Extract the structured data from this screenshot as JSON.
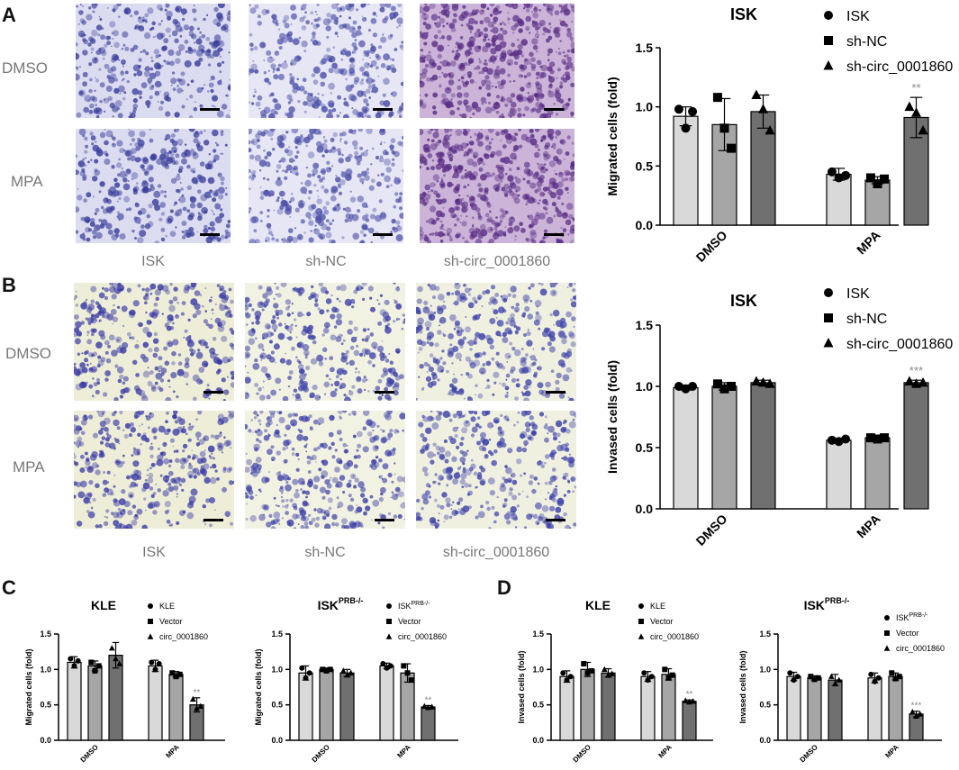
{
  "panels": {
    "a": "A",
    "b": "B",
    "c": "C",
    "d": "D"
  },
  "micrographs": {
    "rows": [
      "DMSO",
      "MPA"
    ],
    "cols": [
      "ISK",
      "sh-NC",
      "sh-circ_0001860"
    ],
    "tints": {
      "A": {
        "base": [
          "#dcdcf0",
          "#e6e6f4",
          "#cbb4d8"
        ],
        "stain": [
          "#3b3f9c",
          "#4a4ea8",
          "#5a2d86"
        ]
      },
      "B": {
        "base": [
          "#eeeed8",
          "#f2f2e2",
          "#f0f0e0"
        ],
        "stain": [
          "#3a3aa6",
          "#3b3fa8",
          "#3d42aa"
        ]
      }
    }
  },
  "colors": {
    "bar1": "#d9d9d9",
    "bar2": "#a6a6a6",
    "bar3": "#707070",
    "sig": "#888888"
  },
  "chart_data": [
    {
      "id": "A",
      "type": "bar",
      "title": "ISK",
      "ylabel": "Migrated cells (fold)",
      "categories": [
        "DMSO",
        "MPA"
      ],
      "ylim": [
        0,
        1.5
      ],
      "yticks": [
        "0.0",
        "0.5",
        "1.0",
        "1.5"
      ],
      "series": [
        {
          "name": "ISK",
          "marker": "circle",
          "values": [
            0.92,
            0.43
          ],
          "err": [
            0.08,
            0.05
          ],
          "points": [
            [
              0.98,
              0.82,
              0.96
            ],
            [
              0.45,
              0.4,
              0.42
            ]
          ]
        },
        {
          "name": "sh-NC",
          "marker": "square",
          "values": [
            0.85,
            0.38
          ],
          "err": [
            0.22,
            0.03
          ],
          "points": [
            [
              1.08,
              0.82,
              0.65
            ],
            [
              0.4,
              0.35,
              0.39
            ]
          ]
        },
        {
          "name": "sh-circ_0001860",
          "marker": "triangle",
          "values": [
            0.96,
            0.91
          ],
          "err": [
            0.14,
            0.17
          ],
          "points": [
            [
              1.1,
              0.98,
              0.8
            ],
            [
              1.0,
              0.95,
              0.8
            ]
          ]
        }
      ],
      "annotations": [
        {
          "category": "MPA",
          "series": 2,
          "text": "**"
        }
      ]
    },
    {
      "id": "B",
      "type": "bar",
      "title": "ISK",
      "ylabel": "Invased cells (fold)",
      "categories": [
        "DMSO",
        "MPA"
      ],
      "ylim": [
        0,
        1.5
      ],
      "yticks": [
        "0.0",
        "0.5",
        "1.0",
        "1.5"
      ],
      "series": [
        {
          "name": "ISK",
          "marker": "circle",
          "values": [
            0.99,
            0.56
          ],
          "err": [
            0.02,
            0.01
          ],
          "points": [
            [
              1.0,
              0.98,
              1.0
            ],
            [
              0.56,
              0.55,
              0.57
            ]
          ]
        },
        {
          "name": "sh-NC",
          "marker": "square",
          "values": [
            1.0,
            0.58
          ],
          "err": [
            0.03,
            0.01
          ],
          "points": [
            [
              1.02,
              0.98,
              1.0
            ],
            [
              0.58,
              0.57,
              0.58
            ]
          ]
        },
        {
          "name": "sh-circ_0001860",
          "marker": "triangle",
          "values": [
            1.03,
            1.03
          ],
          "err": [
            0.02,
            0.02
          ],
          "points": [
            [
              1.04,
              1.03,
              1.02
            ],
            [
              1.04,
              1.02,
              1.03
            ]
          ]
        }
      ],
      "annotations": [
        {
          "category": "MPA",
          "series": 2,
          "text": "***"
        }
      ]
    },
    {
      "id": "C1",
      "type": "bar",
      "title": "KLE",
      "ylabel": "Migrated cells (fold)",
      "categories": [
        "DMSO",
        "MPA"
      ],
      "ylim": [
        0,
        1.5
      ],
      "yticks": [
        "0.0",
        "0.5",
        "1.0",
        "1.5"
      ],
      "series": [
        {
          "name": "KLE",
          "marker": "circle",
          "values": [
            1.1,
            1.05
          ],
          "err": [
            0.08,
            0.08
          ],
          "points": [
            [
              1.15,
              1.05,
              1.12
            ],
            [
              1.1,
              1.0,
              1.08
            ]
          ]
        },
        {
          "name": "Vector",
          "marker": "square",
          "values": [
            1.05,
            0.93
          ],
          "err": [
            0.07,
            0.04
          ],
          "points": [
            [
              1.1,
              0.98,
              1.05
            ],
            [
              0.95,
              0.9,
              0.93
            ]
          ]
        },
        {
          "name": "circ_0001860",
          "marker": "triangle",
          "values": [
            1.2,
            0.5
          ],
          "err": [
            0.18,
            0.1
          ],
          "points": [
            [
              1.3,
              1.15,
              1.08
            ],
            [
              0.58,
              0.45,
              0.48
            ]
          ]
        }
      ],
      "annotations": [
        {
          "category": "MPA",
          "series": 2,
          "text": "**"
        }
      ]
    },
    {
      "id": "C2",
      "type": "bar",
      "title": "ISK",
      "title_sup": "PRB-/-",
      "ylabel": "Migrated cells (fold)",
      "categories": [
        "DMSO",
        "MPA"
      ],
      "ylim": [
        0,
        1.5
      ],
      "yticks": [
        "0.0",
        "0.5",
        "1.0",
        "1.5"
      ],
      "series": [
        {
          "name": "ISK",
          "name_sup": "PRB-/-",
          "marker": "circle",
          "values": [
            0.95,
            1.05
          ],
          "err": [
            0.1,
            0.04
          ],
          "points": [
            [
              1.02,
              0.88,
              0.95
            ],
            [
              1.08,
              1.02,
              1.05
            ]
          ]
        },
        {
          "name": "Vector",
          "marker": "square",
          "values": [
            1.0,
            0.95
          ],
          "err": [
            0.02,
            0.13
          ],
          "points": [
            [
              1.0,
              0.98,
              1.0
            ],
            [
              1.05,
              0.95,
              0.85
            ]
          ]
        },
        {
          "name": "circ_0001860",
          "marker": "triangle",
          "values": [
            0.95,
            0.47
          ],
          "err": [
            0.05,
            0.02
          ],
          "points": [
            [
              0.98,
              0.92,
              0.95
            ],
            [
              0.48,
              0.46,
              0.47
            ]
          ]
        }
      ],
      "annotations": [
        {
          "category": "MPA",
          "series": 2,
          "text": "**"
        }
      ]
    },
    {
      "id": "D1",
      "type": "bar",
      "title": "KLE",
      "ylabel": "Invased cells (fold)",
      "categories": [
        "DMSO",
        "MPA"
      ],
      "ylim": [
        0,
        1.5
      ],
      "yticks": [
        "0.0",
        "0.5",
        "1.0",
        "1.5"
      ],
      "series": [
        {
          "name": "KLE",
          "marker": "circle",
          "values": [
            0.9,
            0.9
          ],
          "err": [
            0.08,
            0.07
          ],
          "points": [
            [
              0.95,
              0.85,
              0.9
            ],
            [
              0.95,
              0.85,
              0.9
            ]
          ]
        },
        {
          "name": "Vector",
          "marker": "square",
          "values": [
            1.0,
            0.93
          ],
          "err": [
            0.1,
            0.08
          ],
          "points": [
            [
              1.08,
              0.95,
              0.98
            ],
            [
              1.0,
              0.88,
              0.92
            ]
          ]
        },
        {
          "name": "circ_0001860",
          "marker": "triangle",
          "values": [
            0.95,
            0.55
          ],
          "err": [
            0.06,
            0.02
          ],
          "points": [
            [
              1.0,
              0.92,
              0.94
            ],
            [
              0.56,
              0.54,
              0.55
            ]
          ]
        }
      ],
      "annotations": [
        {
          "category": "MPA",
          "series": 2,
          "text": "**"
        }
      ]
    },
    {
      "id": "D2",
      "type": "bar",
      "title": "ISK",
      "title_sup": "PRB-/-",
      "ylabel": "Invased cells (fold)",
      "categories": [
        "DMSO",
        "MPA"
      ],
      "ylim": [
        0,
        1.5
      ],
      "yticks": [
        "0.0",
        "0.5",
        "1.0",
        "1.5"
      ],
      "series": [
        {
          "name": "ISK",
          "name_sup": "PRB-/-",
          "marker": "circle",
          "values": [
            0.9,
            0.88
          ],
          "err": [
            0.06,
            0.07
          ],
          "points": [
            [
              0.95,
              0.85,
              0.9
            ],
            [
              0.93,
              0.83,
              0.88
            ]
          ]
        },
        {
          "name": "Vector",
          "marker": "square",
          "values": [
            0.88,
            0.9
          ],
          "err": [
            0.03,
            0.05
          ],
          "points": [
            [
              0.9,
              0.86,
              0.88
            ],
            [
              0.95,
              0.87,
              0.9
            ]
          ]
        },
        {
          "name": "circ_0001860",
          "marker": "triangle",
          "values": [
            0.85,
            0.37
          ],
          "err": [
            0.08,
            0.04
          ],
          "points": [
            [
              0.9,
              0.8,
              0.85
            ],
            [
              0.4,
              0.34,
              0.37
            ]
          ]
        }
      ],
      "annotations": [
        {
          "category": "MPA",
          "series": 2,
          "text": "***"
        }
      ]
    }
  ]
}
